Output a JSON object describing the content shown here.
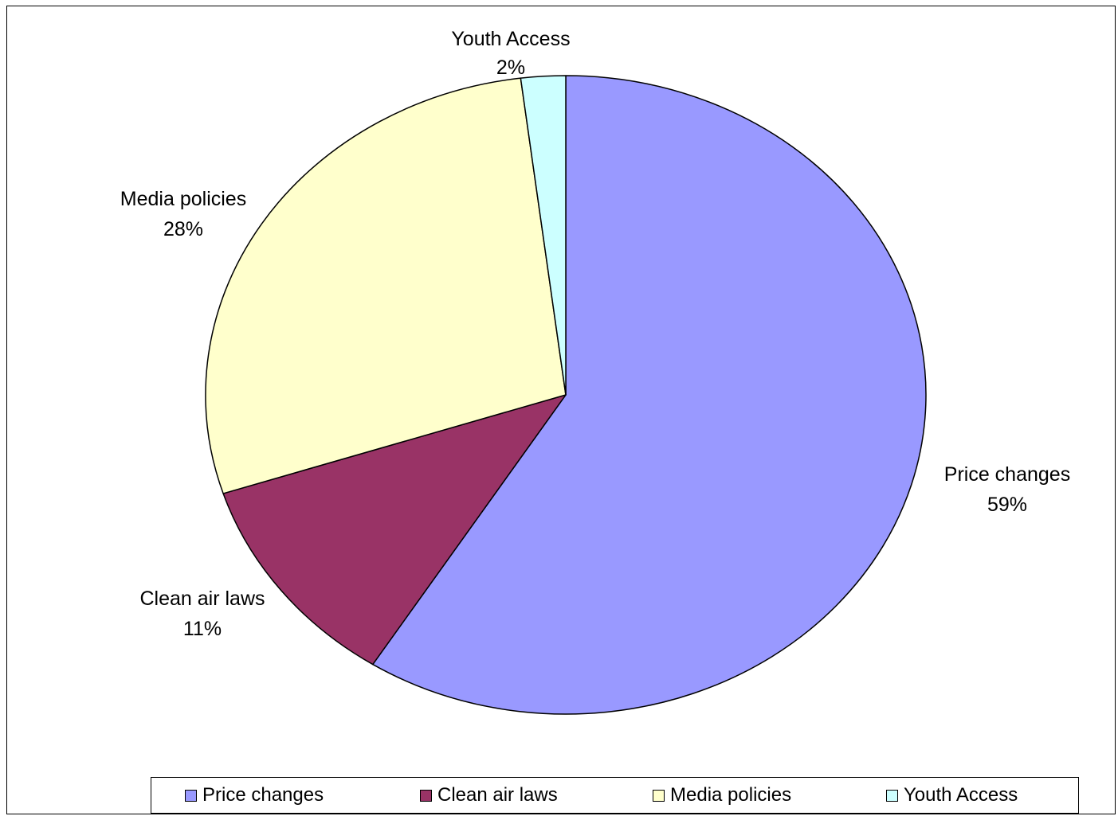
{
  "chart_data": {
    "type": "pie",
    "categories": [
      "Price changes",
      "Clean air laws",
      "Media policies",
      "Youth Access"
    ],
    "values": [
      59,
      11,
      28,
      2
    ],
    "unit": "%",
    "colors": [
      "#9999ff",
      "#993366",
      "#ffffcc",
      "#ccffff"
    ],
    "start_angle_deg": 0,
    "direction": "clockwise",
    "data_labels": [
      {
        "name": "Price changes",
        "value": "59%"
      },
      {
        "name": "Clean air laws",
        "value": "11%"
      },
      {
        "name": "Media policies",
        "value": "28%"
      },
      {
        "name": "Youth Access",
        "value": "2%"
      }
    ],
    "legend": {
      "placement": "bottom",
      "entries": [
        "Price changes",
        "Clean air laws",
        "Media policies",
        "Youth Access"
      ]
    },
    "title": ""
  }
}
